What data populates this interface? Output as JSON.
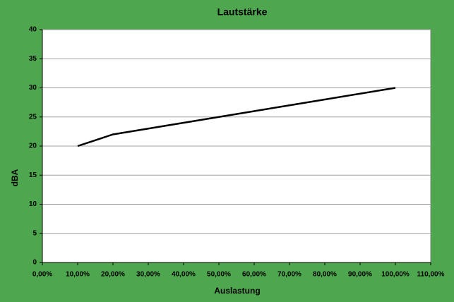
{
  "chart_data": {
    "type": "line",
    "title": "Lautstärke",
    "x_label": "Auslastung",
    "y_label": "dBA",
    "x": [
      10,
      20,
      30,
      40,
      50,
      60,
      70,
      80,
      90,
      100
    ],
    "series": [
      {
        "name": "dBA",
        "color": "#000000",
        "values": [
          20,
          22,
          23,
          24,
          25,
          26,
          27,
          28,
          29,
          30
        ]
      }
    ],
    "xlim": [
      0,
      110
    ],
    "xticks": [
      {
        "value": 0,
        "label": "0,00%"
      },
      {
        "value": 10,
        "label": "10,00%"
      },
      {
        "value": 20,
        "label": "20,00%"
      },
      {
        "value": 30,
        "label": "30,00%"
      },
      {
        "value": 40,
        "label": "40,00%"
      },
      {
        "value": 50,
        "label": "50,00%"
      },
      {
        "value": 60,
        "label": "60,00%"
      },
      {
        "value": 70,
        "label": "70,00%"
      },
      {
        "value": 80,
        "label": "80,00%"
      },
      {
        "value": 90,
        "label": "90,00%"
      },
      {
        "value": 100,
        "label": "100,00%"
      },
      {
        "value": 110,
        "label": "110,00%"
      }
    ],
    "ylim": [
      0,
      40
    ],
    "yticks": [
      0,
      5,
      10,
      15,
      20,
      25,
      30,
      35,
      40
    ],
    "grid": true
  }
}
